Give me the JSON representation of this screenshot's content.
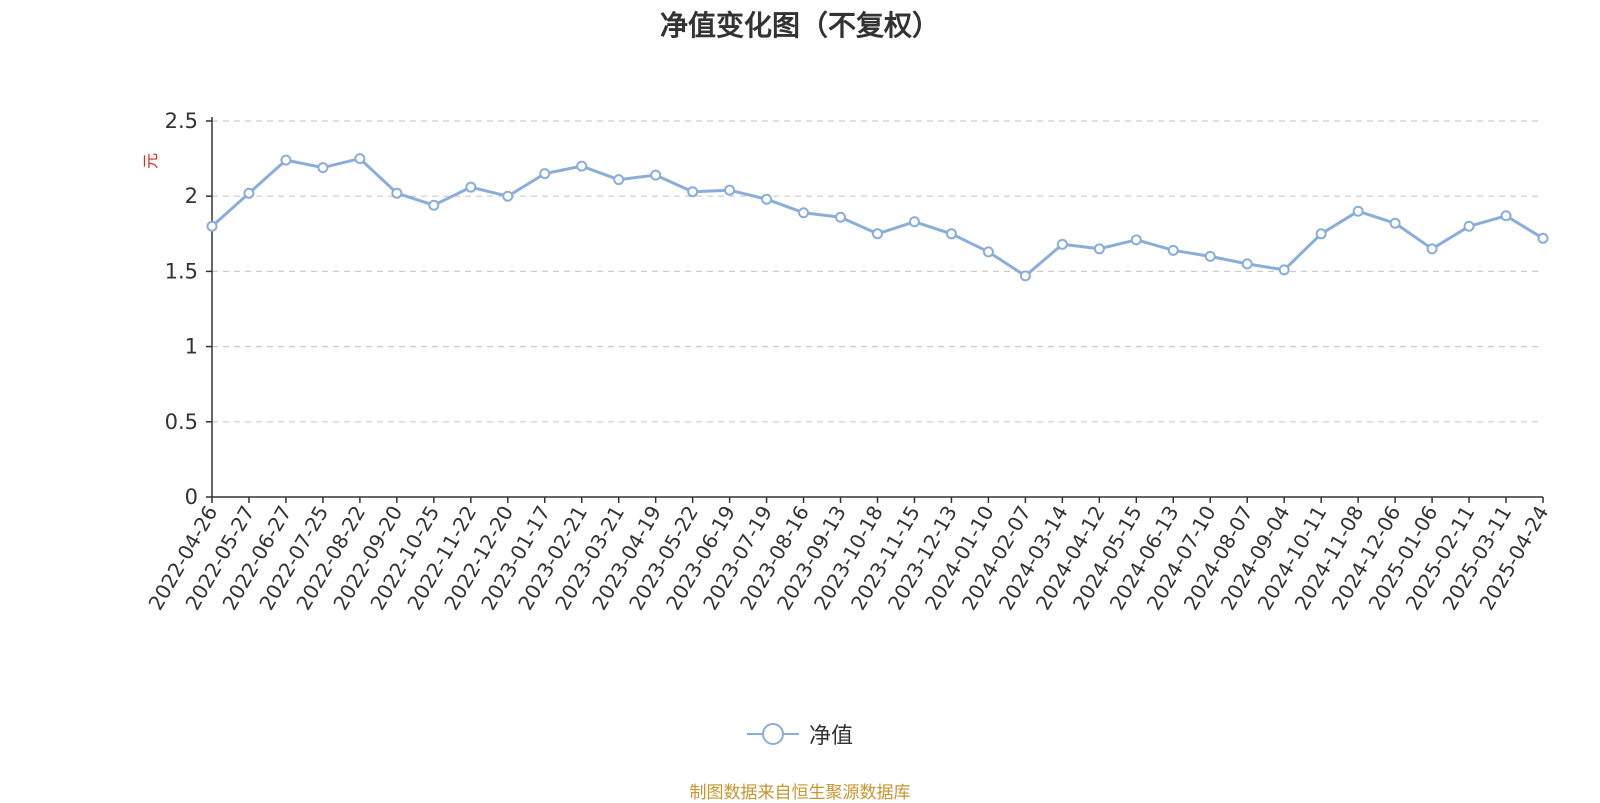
{
  "title": "净值变化图（不复权）",
  "source": "制图数据来自恒生聚源数据库",
  "colors": {
    "line": "#8aaed9",
    "axis": "#333333",
    "grid": "#cccccc",
    "ylabel": "#e2231a",
    "source": "#c9952f"
  },
  "chart_data": {
    "type": "line",
    "ylabel": "元",
    "ylim": [
      0,
      2.5
    ],
    "yticks": [
      "0",
      "0.5",
      "1",
      "1.5",
      "2",
      "2.5"
    ],
    "grid": true,
    "legend_position": "bottom-center",
    "x": [
      "2022-04-26",
      "2022-05-27",
      "2022-06-27",
      "2022-07-25",
      "2022-08-22",
      "2022-09-20",
      "2022-10-25",
      "2022-11-22",
      "2022-12-20",
      "2023-01-17",
      "2023-02-21",
      "2023-03-21",
      "2023-04-19",
      "2023-05-22",
      "2023-06-19",
      "2023-07-19",
      "2023-08-16",
      "2023-09-13",
      "2023-10-18",
      "2023-11-15",
      "2023-12-13",
      "2024-01-10",
      "2024-02-07",
      "2024-03-14",
      "2024-04-12",
      "2024-05-15",
      "2024-06-13",
      "2024-07-10",
      "2024-08-07",
      "2024-09-04",
      "2024-10-11",
      "2024-11-08",
      "2024-12-06",
      "2025-01-06",
      "2025-02-11",
      "2025-03-11",
      "2025-04-24"
    ],
    "series": [
      {
        "name": "净值",
        "values": [
          1.8,
          2.02,
          2.24,
          2.19,
          2.25,
          2.02,
          1.94,
          2.06,
          2.0,
          2.15,
          2.2,
          2.11,
          2.14,
          2.03,
          2.04,
          1.98,
          1.89,
          1.86,
          1.75,
          1.83,
          1.75,
          1.63,
          1.47,
          1.68,
          1.65,
          1.71,
          1.64,
          1.6,
          1.55,
          1.51,
          1.75,
          1.9,
          1.82,
          1.65,
          1.8,
          1.87,
          1.72
        ]
      }
    ]
  }
}
